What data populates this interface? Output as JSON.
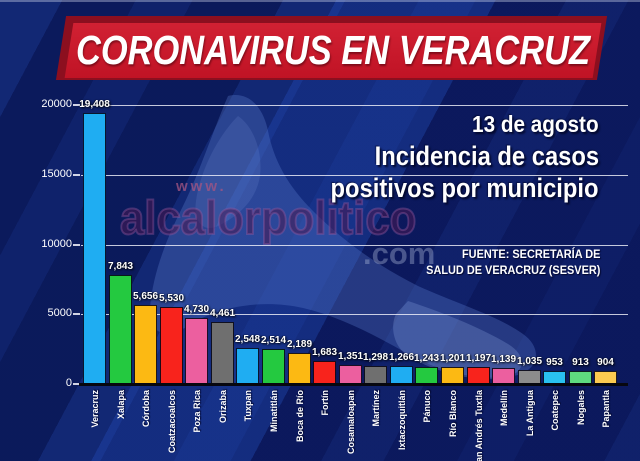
{
  "banner": {
    "title": "CORONAVIRUS EN VERACRUZ",
    "bg_color": "#c9182b",
    "shadow_color": "#8c0f1f"
  },
  "header": {
    "date": "13 de agosto",
    "subtitle_line1": "Incidencia de casos",
    "subtitle_line2": "positivos por municipio",
    "source_line1": "FUENTE: SECRETARÍA DE",
    "source_line2": "SALUD DE VERACRUZ (SESVER)"
  },
  "watermark": {
    "prefix": "www.",
    "name": "alcalorpolitico",
    "suffix": ".com"
  },
  "chart_data": {
    "type": "bar",
    "title": "Incidencia de casos positivos por municipio",
    "date_label": "13 de agosto",
    "source": "FUENTE: SECRETARÍA DE SALUD DE VERACRUZ (SESVER)",
    "categories": [
      "Veracruz",
      "Xalapa",
      "Córdoba",
      "Coatzacoalcos",
      "Poza Rica",
      "Orizaba",
      "Tuxpan",
      "Minatitlán",
      "Boca de Río",
      "Fortín",
      "Cosamaloapan",
      "Martínez",
      "Ixtaczoquitlán",
      "Pánuco",
      "Río Blanco",
      "San Andrés Tuxtla",
      "Medellín",
      "La Antigua",
      "Coatepec",
      "Nogales",
      "Papantla"
    ],
    "values": [
      19408,
      7843,
      5656,
      5530,
      4730,
      4461,
      2548,
      2514,
      2189,
      1683,
      1351,
      1298,
      1266,
      1243,
      1201,
      1197,
      1139,
      1035,
      953,
      913,
      904
    ],
    "value_labels": [
      "19,408",
      "7,843",
      "5,656",
      "5,530",
      "4,730",
      "4,461",
      "2,548",
      "2,514",
      "2,189",
      "1,683",
      "1,351",
      "1,298",
      "1,266",
      "1,243",
      "1,201",
      "1,197",
      "1,139",
      "1,035",
      "953",
      "913",
      "904"
    ],
    "bar_colors": [
      "#1fadf2",
      "#24c940",
      "#fcb913",
      "#f8231c",
      "#ec5f9f",
      "#6f6f6f",
      "#1fadf2",
      "#24c940",
      "#fcb913",
      "#f8231c",
      "#ec5f9f",
      "#6f6f6f",
      "#1fadf2",
      "#24c940",
      "#fcb913",
      "#f8231c",
      "#ec5f9f",
      "#8c8c8c",
      "#29c1f0",
      "#5eda7f",
      "#fcca50"
    ],
    "ylim": [
      0,
      20000
    ],
    "yticks": [
      0,
      5000,
      10000,
      15000,
      20000
    ],
    "ytick_labels": [
      "0",
      "5000",
      "10000",
      "15000",
      "20000"
    ],
    "grid": "horizontal",
    "legend_position": "none"
  },
  "colors": {
    "background": "#0b1b5e",
    "grid_line": "#f5f5fc",
    "axis_line": "#07070f",
    "bar_label_text": "#ffffff",
    "watermark_purple": "#481a54"
  }
}
